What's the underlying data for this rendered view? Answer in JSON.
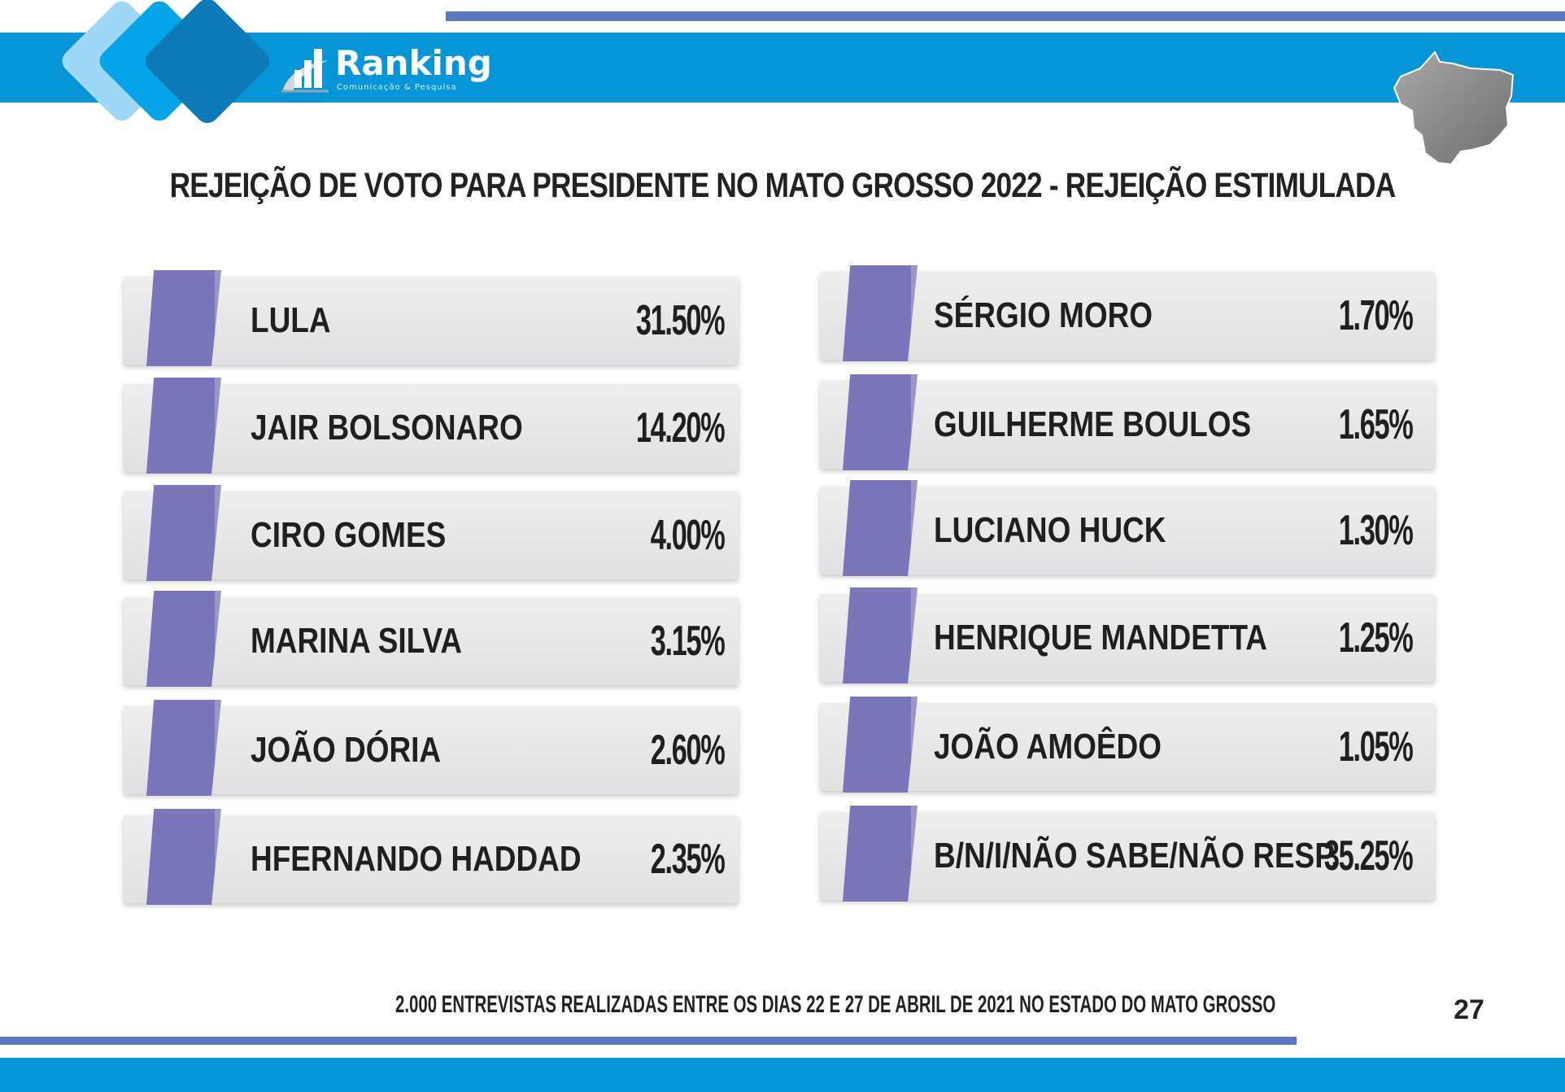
{
  "brand": {
    "name": "Ranking",
    "tagline": "Comunicação & Pesquisa",
    "colors": {
      "primary_blue": "#0696d7",
      "dark_blue": "#0f7ab8",
      "stripe": "#5b78be",
      "accent_purple": "#7b75b9"
    },
    "state_icon": "mato-grosso-map-icon"
  },
  "title": "REJEIÇÃO DE VOTO PARA PRESIDENTE NO MATO GROSSO 2022 - REJEIÇÃO ESTIMULADA",
  "left_items": [
    {
      "name": "LULA",
      "value": "31.50%"
    },
    {
      "name": "JAIR BOLSONARO",
      "value": "14.20%"
    },
    {
      "name": "CIRO GOMES",
      "value": "4.00%"
    },
    {
      "name": "MARINA SILVA",
      "value": "3.15%"
    },
    {
      "name": "JOÃO DÓRIA",
      "value": "2.60%"
    },
    {
      "name": "HFERNANDO HADDAD",
      "value": "2.35%"
    }
  ],
  "right_items": [
    {
      "name": "SÉRGIO MORO",
      "value": "1.70%"
    },
    {
      "name": "GUILHERME BOULOS",
      "value": "1.65%"
    },
    {
      "name": "LUCIANO HUCK",
      "value": "1.30%"
    },
    {
      "name": "HENRIQUE MANDETTA",
      "value": "1.25%"
    },
    {
      "name": "JOÃO AMOÊDO",
      "value": "1.05%"
    },
    {
      "name": "B/N/I/NÃO SABE/NÃO RESP.",
      "value": "35.25%"
    }
  ],
  "footnote": "2.000 ENTREVISTAS REALIZADAS ENTRE OS DIAS 22 E 27 DE ABRIL DE 2021 NO ESTADO DO MATO GROSSO",
  "page_number": "27"
}
